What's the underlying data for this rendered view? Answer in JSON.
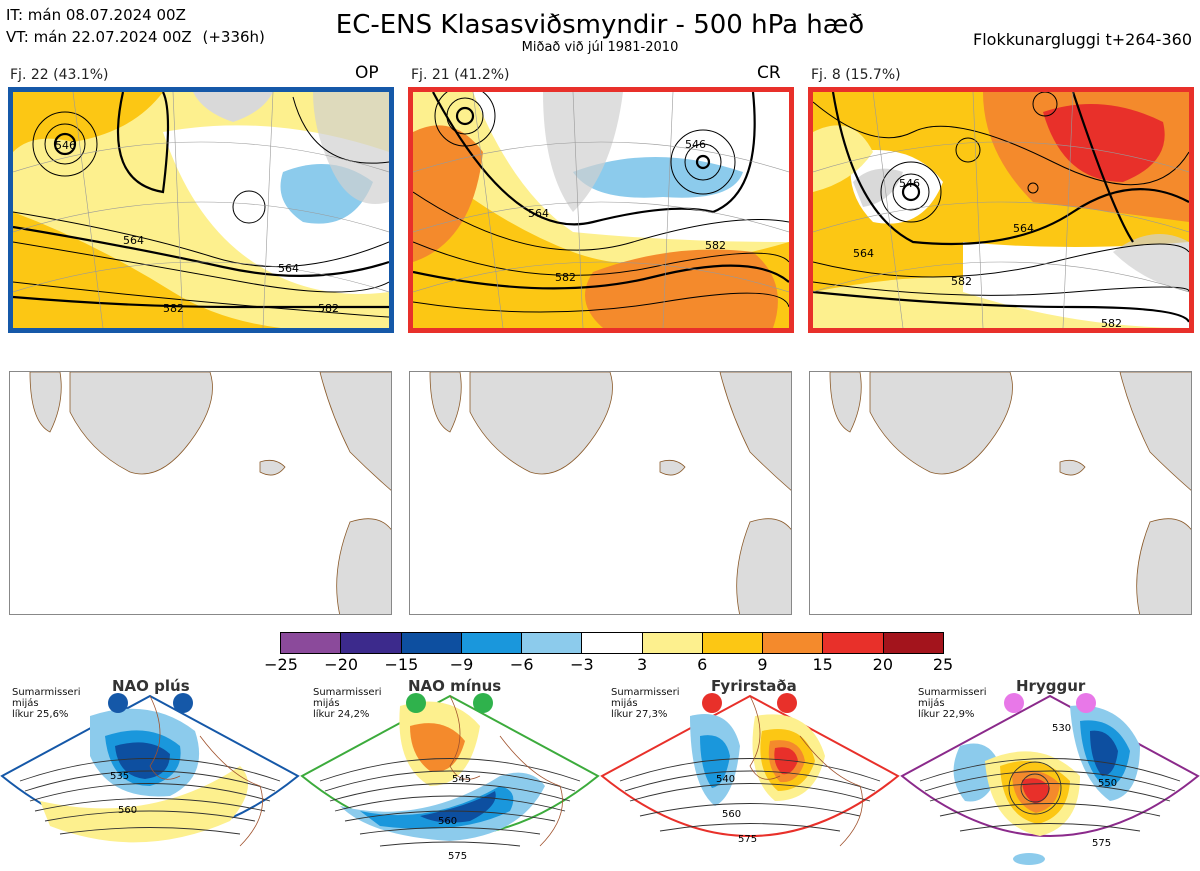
{
  "header": {
    "it_line": "IT: mán 08.07.2024 00Z",
    "vt_line": "VT: mán 22.07.2024 00Z",
    "vt_offset": "(+336h)",
    "title": "EC-ENS Klasasviðsmyndir - 500 hPa hæð",
    "subtitle": "Miðað við júl 1981-2010",
    "window": "Flokkunargluggi t+264-360"
  },
  "clusters": [
    {
      "label": "Fj. 22 (43.1%)",
      "code": "OP",
      "border": "#1558a8",
      "contours": [
        "546",
        "564",
        "564",
        "582",
        "582"
      ]
    },
    {
      "label": "Fj. 21 (41.2%)",
      "code": "CR",
      "border": "#e8302a",
      "contours": [
        "546",
        "564",
        "582",
        "582"
      ]
    },
    {
      "label": "Fj. 8 (15.7%)",
      "code": "",
      "border": "#e8302a",
      "contours": [
        "546",
        "564",
        "564",
        "582",
        "582"
      ]
    }
  ],
  "colorbar": {
    "ticks": [
      "−25",
      "−20",
      "−15",
      "−9",
      "−6",
      "−3",
      "3",
      "6",
      "9",
      "15",
      "20",
      "25"
    ],
    "colors": [
      "#8b4a9b",
      "#3c2a8c",
      "#0d4fa0",
      "#1a97dc",
      "#8ccbec",
      "#ffffff",
      "#fdf08e",
      "#fcc714",
      "#f48a2c",
      "#e8302a",
      "#a3141c"
    ]
  },
  "regimes": [
    {
      "title": "NAO plús",
      "note_lines": [
        "Sumarmisseri",
        "mijás",
        "líkur 25,6%"
      ],
      "color": "#1558a8",
      "dot": "#1558a8",
      "contours": [
        "535",
        "560"
      ]
    },
    {
      "title": "NAO mínus",
      "note_lines": [
        "Sumarmisseri",
        "mijás",
        "líkur 24,2%"
      ],
      "color": "#3cab3c",
      "dot": "#2fb24c",
      "contours": [
        "545",
        "560",
        "575"
      ]
    },
    {
      "title": "Fyrirstaða",
      "note_lines": [
        "Sumarmisseri",
        "mijás",
        "líkur 27,3%"
      ],
      "color": "#e8302a",
      "dot": "#e8302a",
      "contours": [
        "540",
        "560",
        "575"
      ]
    },
    {
      "title": "Hryggur",
      "note_lines": [
        "Sumarmisseri",
        "mijás",
        "líkur 22,9%"
      ],
      "color": "#8b2a8b",
      "dot": "#e878e8",
      "contours": [
        "530",
        "550",
        "575"
      ]
    }
  ]
}
